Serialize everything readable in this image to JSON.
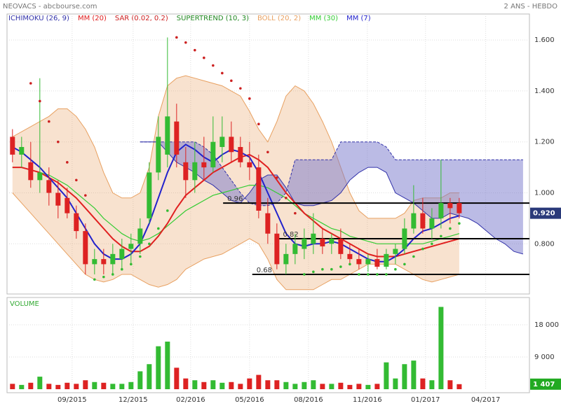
{
  "chart_data": {
    "type": "candlestick",
    "title": "NEOVACS - abcbourse.com",
    "period": "2 ANS - HEBDO",
    "legend": [
      {
        "name": "ICHIMOKU (26, 9)",
        "color": "#3333aa"
      },
      {
        "name": "MM (20)",
        "color": "#e02020"
      },
      {
        "name": "SAR (0.02, 0.2)",
        "color": "#cc2020"
      },
      {
        "name": "SUPERTREND (10, 3)",
        "color": "#228822"
      },
      {
        "name": "BOLL (20, 2)",
        "color": "#e8a060"
      },
      {
        "name": "MM (30)",
        "color": "#33cc33"
      },
      {
        "name": "MM (7)",
        "color": "#2222cc"
      }
    ],
    "up_color": "#33bb33",
    "down_color": "#dd2222",
    "xlim": [
      -0.6,
      56.7
    ],
    "xticks": [
      {
        "value": 6.54,
        "label": "09/2015"
      },
      {
        "value": 13.23,
        "label": "12/2015"
      },
      {
        "value": 19.54,
        "label": "02/2016"
      },
      {
        "value": 26,
        "label": "05/2016"
      },
      {
        "value": 32.46,
        "label": "08/2016"
      },
      {
        "value": 38.92,
        "label": "11/2016"
      },
      {
        "value": 45.3,
        "label": "01/2017"
      },
      {
        "value": 51.9,
        "label": "04/2017"
      }
    ],
    "ylim": [
      0.603,
      1.702
    ],
    "yticks": [
      {
        "value": 0.8,
        "label": "0.800"
      },
      {
        "value": 1.0,
        "label": "1.000"
      },
      {
        "value": 1.2,
        "label": "1.200"
      },
      {
        "value": 1.4,
        "label": "1.400"
      },
      {
        "value": 1.6,
        "label": "1.600"
      }
    ],
    "grid": true,
    "open": [
      1.22,
      1.15,
      1.12,
      1.05,
      1.05,
      1.0,
      0.98,
      0.92,
      0.85,
      0.72,
      0.74,
      0.72,
      0.74,
      0.78,
      0.8,
      0.9,
      1.08,
      1.15,
      1.28,
      1.12,
      1.05,
      1.12,
      1.1,
      1.18,
      1.22,
      1.18,
      1.12,
      1.1,
      0.92,
      0.84,
      0.72,
      0.76,
      0.78,
      0.8,
      0.82,
      0.8,
      0.82,
      0.76,
      0.74,
      0.72,
      0.74,
      0.71,
      0.76,
      0.78,
      0.86,
      0.92,
      0.86,
      0.9,
      0.96,
      0.96
    ],
    "high": [
      1.25,
      1.22,
      1.2,
      1.45,
      1.1,
      1.05,
      1.02,
      0.95,
      0.88,
      0.78,
      0.78,
      0.8,
      0.82,
      0.84,
      0.9,
      1.12,
      1.3,
      1.61,
      1.35,
      1.18,
      1.2,
      1.22,
      1.3,
      1.3,
      1.28,
      1.22,
      1.2,
      1.15,
      0.98,
      0.88,
      0.8,
      0.84,
      0.86,
      0.92,
      0.86,
      0.84,
      0.86,
      0.8,
      0.78,
      0.76,
      0.78,
      0.78,
      0.8,
      0.9,
      1.03,
      0.98,
      0.94,
      1.13,
      0.98,
      0.98
    ],
    "low": [
      1.12,
      1.1,
      1.02,
      1.0,
      0.95,
      0.9,
      0.9,
      0.82,
      0.68,
      0.68,
      0.68,
      0.68,
      0.7,
      0.72,
      0.76,
      0.88,
      1.05,
      1.1,
      1.1,
      0.98,
      1.0,
      1.05,
      1.08,
      1.12,
      1.12,
      1.1,
      1.05,
      0.9,
      0.8,
      0.7,
      0.68,
      0.72,
      0.74,
      0.76,
      0.76,
      0.76,
      0.74,
      0.72,
      0.7,
      0.69,
      0.7,
      0.7,
      0.72,
      0.76,
      0.84,
      0.84,
      0.82,
      0.86,
      0.88,
      0.9
    ],
    "close": [
      1.15,
      1.18,
      1.05,
      1.08,
      1.0,
      0.95,
      0.92,
      0.85,
      0.72,
      0.74,
      0.72,
      0.76,
      0.78,
      0.8,
      0.86,
      1.08,
      1.22,
      1.3,
      1.15,
      1.05,
      1.12,
      1.1,
      1.2,
      1.22,
      1.16,
      1.12,
      1.1,
      0.93,
      0.84,
      0.72,
      0.76,
      0.8,
      0.82,
      0.84,
      0.79,
      0.82,
      0.76,
      0.74,
      0.72,
      0.74,
      0.71,
      0.76,
      0.78,
      0.86,
      0.92,
      0.86,
      0.9,
      0.96,
      0.94,
      0.92
    ],
    "mm7": [
      1.18,
      1.16,
      1.13,
      1.1,
      1.06,
      1.02,
      0.98,
      0.92,
      0.86,
      0.8,
      0.76,
      0.74,
      0.74,
      0.76,
      0.8,
      0.88,
      0.98,
      1.08,
      1.16,
      1.19,
      1.17,
      1.14,
      1.12,
      1.15,
      1.17,
      1.16,
      1.14,
      1.08,
      1.0,
      0.92,
      0.84,
      0.8,
      0.79,
      0.8,
      0.8,
      0.81,
      0.8,
      0.78,
      0.76,
      0.74,
      0.73,
      0.73,
      0.75,
      0.78,
      0.82,
      0.85,
      0.86,
      0.88,
      0.9,
      0.91
    ],
    "mm20": [
      1.1,
      1.1,
      1.09,
      1.08,
      1.06,
      1.04,
      1.01,
      0.98,
      0.94,
      0.9,
      0.86,
      0.82,
      0.79,
      0.77,
      0.77,
      0.79,
      0.83,
      0.88,
      0.94,
      0.99,
      1.02,
      1.05,
      1.08,
      1.1,
      1.12,
      1.14,
      1.15,
      1.13,
      1.1,
      1.05,
      1.0,
      0.96,
      0.92,
      0.89,
      0.86,
      0.84,
      0.82,
      0.8,
      0.78,
      0.76,
      0.75,
      0.75,
      0.75,
      0.76,
      0.77,
      0.78,
      0.79,
      0.8,
      0.81,
      0.82
    ],
    "mm30": [
      1.1,
      1.1,
      1.09,
      1.08,
      1.07,
      1.05,
      1.03,
      1.0,
      0.97,
      0.94,
      0.9,
      0.87,
      0.84,
      0.82,
      0.81,
      0.82,
      0.84,
      0.87,
      0.9,
      0.93,
      0.95,
      0.97,
      0.99,
      1.0,
      1.01,
      1.02,
      1.03,
      1.03,
      1.02,
      1.0,
      0.98,
      0.95,
      0.92,
      0.9,
      0.88,
      0.86,
      0.85,
      0.83,
      0.82,
      0.81,
      0.8,
      0.8,
      0.8,
      0.8,
      0.8,
      0.8,
      0.81,
      0.82,
      0.83,
      0.84
    ],
    "boll_upper": [
      1.22,
      1.24,
      1.26,
      1.28,
      1.3,
      1.33,
      1.33,
      1.3,
      1.25,
      1.18,
      1.08,
      1.0,
      0.98,
      0.98,
      1.0,
      1.1,
      1.3,
      1.42,
      1.45,
      1.46,
      1.45,
      1.44,
      1.43,
      1.42,
      1.4,
      1.38,
      1.32,
      1.25,
      1.2,
      1.28,
      1.38,
      1.42,
      1.4,
      1.35,
      1.28,
      1.2,
      1.1,
      1.0,
      0.93,
      0.9,
      0.9,
      0.9,
      0.9,
      0.92,
      0.97,
      0.98,
      0.98,
      0.98,
      1.0,
      1.0
    ],
    "boll_lower": [
      1.0,
      0.96,
      0.92,
      0.88,
      0.84,
      0.8,
      0.76,
      0.72,
      0.68,
      0.66,
      0.65,
      0.66,
      0.68,
      0.68,
      0.66,
      0.64,
      0.63,
      0.64,
      0.66,
      0.7,
      0.72,
      0.74,
      0.75,
      0.76,
      0.78,
      0.8,
      0.82,
      0.8,
      0.74,
      0.66,
      0.62,
      0.62,
      0.62,
      0.62,
      0.64,
      0.66,
      0.66,
      0.68,
      0.7,
      0.72,
      0.72,
      0.72,
      0.72,
      0.7,
      0.68,
      0.66,
      0.65,
      0.66,
      0.67,
      0.68
    ],
    "sar": [
      null,
      null,
      1.43,
      1.36,
      1.28,
      1.2,
      1.12,
      1.05,
      0.99,
      0.66,
      0.67,
      0.68,
      0.7,
      0.72,
      0.75,
      0.8,
      0.86,
      0.93,
      1.61,
      1.59,
      1.56,
      1.53,
      1.5,
      1.47,
      1.44,
      1.41,
      1.37,
      1.27,
      1.16,
      1.06,
      0.98,
      0.92,
      0.68,
      0.69,
      0.7,
      0.7,
      0.71,
      0.72,
      0.68,
      0.68,
      0.68,
      0.68,
      0.7,
      0.72,
      0.75,
      0.78,
      0.8,
      0.83,
      0.86,
      0.88
    ],
    "span_a": [
      null,
      null,
      null,
      null,
      null,
      null,
      null,
      null,
      null,
      null,
      null,
      null,
      null,
      null,
      1.2,
      1.2,
      1.2,
      1.2,
      1.2,
      1.2,
      1.2,
      1.18,
      1.15,
      1.1,
      1.05,
      1.0,
      0.96,
      0.95,
      0.95,
      0.96,
      1.0,
      1.13,
      1.13,
      1.13,
      1.13,
      1.13,
      1.2,
      1.2,
      1.2,
      1.2,
      1.2,
      1.18,
      1.13,
      1.13,
      1.13,
      1.13,
      1.13,
      1.13,
      1.13,
      1.13,
      1.13,
      1.13,
      1.13,
      1.13,
      1.13,
      1.13,
      1.13
    ],
    "span_b": [
      null,
      null,
      null,
      null,
      null,
      null,
      null,
      null,
      null,
      null,
      null,
      null,
      null,
      null,
      1.2,
      1.2,
      1.2,
      1.16,
      1.12,
      1.1,
      1.08,
      1.05,
      1.03,
      1.0,
      0.97,
      0.96,
      1.0,
      1.05,
      1.07,
      1.07,
      1.02,
      0.96,
      0.95,
      0.95,
      0.96,
      0.97,
      1.0,
      1.05,
      1.08,
      1.1,
      1.1,
      1.08,
      1.0,
      0.98,
      0.96,
      0.93,
      0.9,
      0.9,
      0.92,
      0.91,
      0.9,
      0.88,
      0.85,
      0.82,
      0.8,
      0.77,
      0.76
    ],
    "levels": [
      {
        "value": 0.96,
        "from": 23.1
      },
      {
        "value": 0.82,
        "from": 29.2
      },
      {
        "value": 0.68,
        "from": 26.3
      }
    ],
    "last_price": {
      "value": 0.92,
      "label": "0.920"
    },
    "volume": {
      "label": "VOLUME",
      "values": [
        1500,
        1200,
        1800,
        3500,
        1500,
        1200,
        1800,
        1500,
        2500,
        2000,
        1800,
        1500,
        1500,
        2000,
        5000,
        7000,
        12000,
        13300,
        6000,
        3000,
        2500,
        2000,
        2500,
        1800,
        2000,
        1500,
        3000,
        4000,
        2500,
        2500,
        2000,
        1500,
        2000,
        2500,
        1500,
        1500,
        1800,
        1200,
        1500,
        1200,
        1500,
        7500,
        3000,
        7000,
        8000,
        3000,
        2500,
        23000,
        2500,
        1407
      ],
      "ylim": [
        0,
        25630
      ],
      "yticks": [
        {
          "value": 9000,
          "label": "9 000"
        },
        {
          "value": 18000,
          "label": "18 000"
        }
      ],
      "last": {
        "value": 1407,
        "label": "1 407"
      }
    }
  }
}
